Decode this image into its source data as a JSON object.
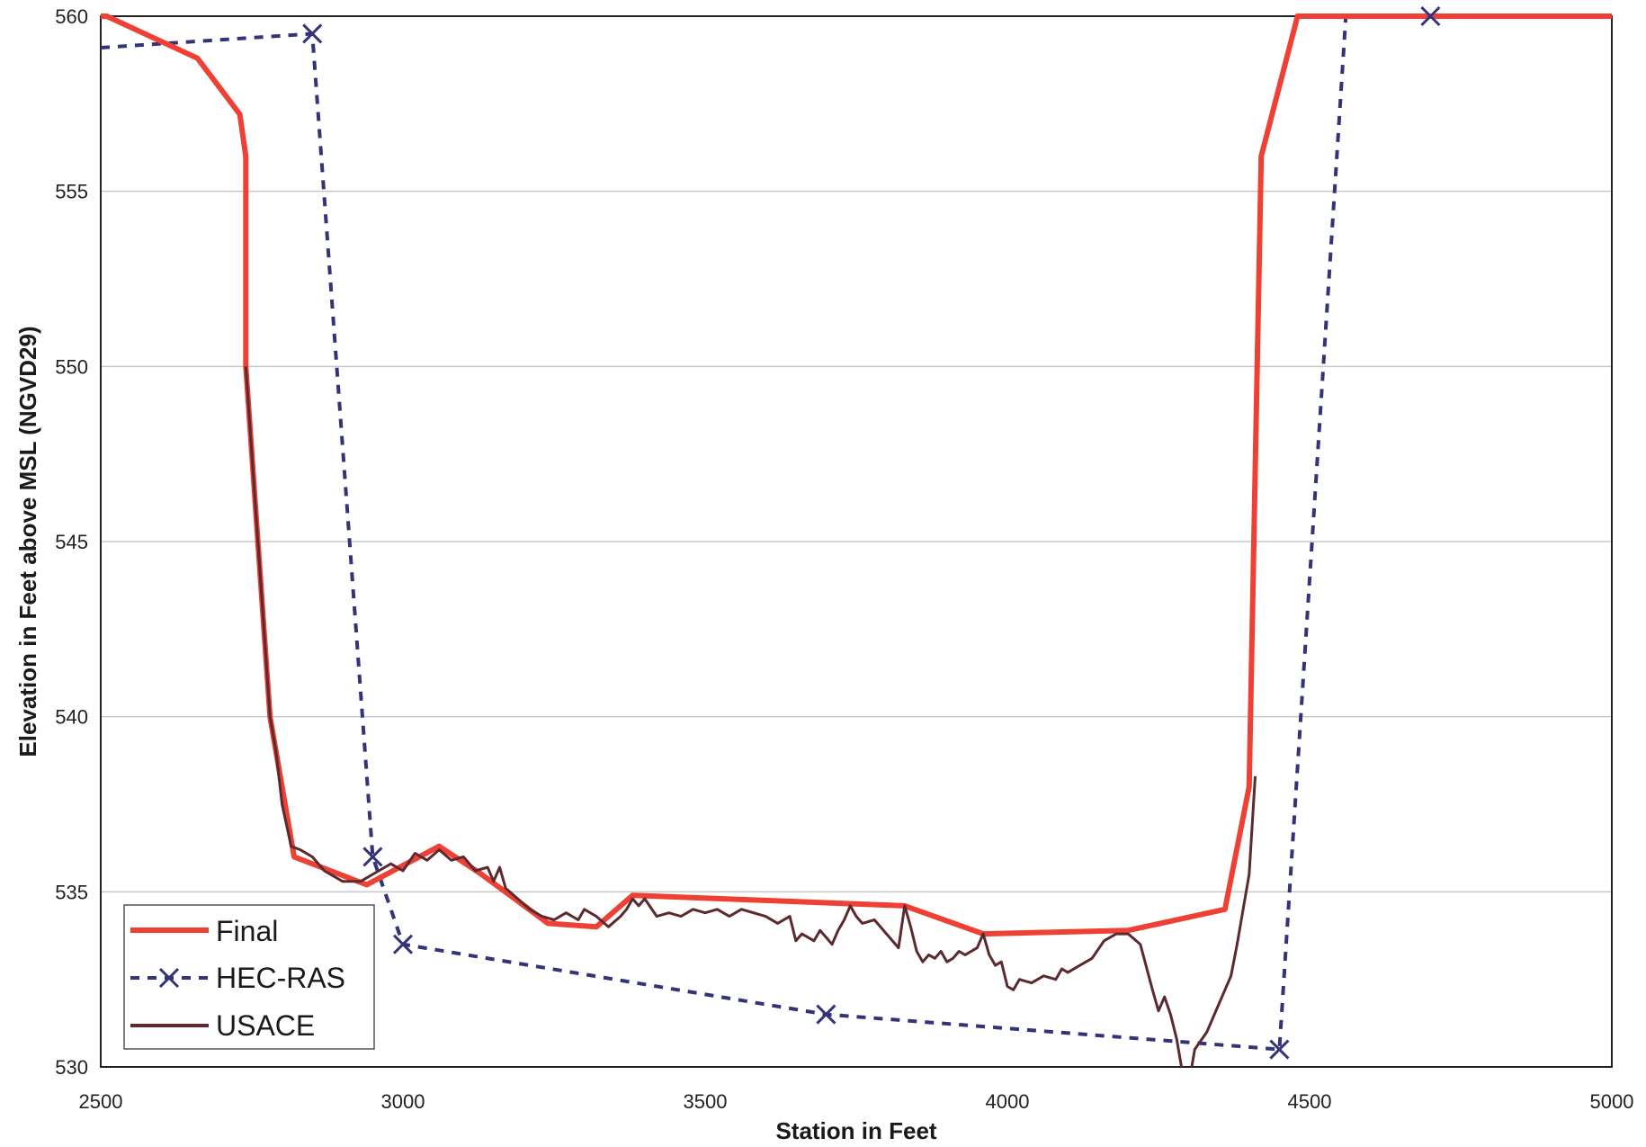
{
  "chart_data": {
    "type": "line",
    "title": "",
    "xlabel": "Station in Feet",
    "ylabel": "Elevation in Feet above MSL (NGVD29)",
    "xlim": [
      2500,
      5000
    ],
    "ylim": [
      530,
      560
    ],
    "x_ticks": [
      "2500",
      "3000",
      "3500",
      "4000",
      "4500",
      "5000"
    ],
    "y_ticks": [
      "530",
      "535",
      "540",
      "545",
      "550",
      "555",
      "560"
    ],
    "grid": "horizontal",
    "legend_position": "bottom-left",
    "series": [
      {
        "name": "Final",
        "color": "#ee4035",
        "style": "solid-thick",
        "points": [
          [
            2500,
            560
          ],
          [
            2510,
            560
          ],
          [
            2660,
            558.8
          ],
          [
            2730,
            557.2
          ],
          [
            2740,
            556
          ],
          [
            2740,
            550
          ],
          [
            2760,
            545
          ],
          [
            2780,
            540
          ],
          [
            2800,
            538
          ],
          [
            2820,
            536
          ],
          [
            2940,
            535.2
          ],
          [
            3060,
            536.3
          ],
          [
            3130,
            535.5
          ],
          [
            3240,
            534.1
          ],
          [
            3320,
            534
          ],
          [
            3380,
            534.9
          ],
          [
            3830,
            534.6
          ],
          [
            3960,
            533.8
          ],
          [
            4200,
            533.9
          ],
          [
            4360,
            534.5
          ],
          [
            4400,
            538
          ],
          [
            4420,
            556
          ],
          [
            4480,
            560
          ],
          [
            5000,
            560
          ]
        ]
      },
      {
        "name": "HEC-RAS",
        "color": "#33337a",
        "style": "dashed-x",
        "points": [
          [
            2500,
            559.1
          ],
          [
            2850,
            559.5
          ],
          [
            2950,
            536
          ],
          [
            3000,
            533.5
          ],
          [
            3700,
            531.5
          ],
          [
            4450,
            530.5
          ],
          [
            4560,
            560
          ],
          [
            4700,
            560
          ],
          [
            5000,
            560
          ]
        ],
        "marked_points": [
          [
            2850,
            559.5
          ],
          [
            2950,
            536
          ],
          [
            3000,
            533.5
          ],
          [
            3700,
            531.5
          ],
          [
            4450,
            530.5
          ],
          [
            4700,
            560
          ]
        ]
      },
      {
        "name": "USACE",
        "color": "#5c2a2e",
        "style": "solid-jagged",
        "points": [
          [
            2740,
            550
          ],
          [
            2760,
            545
          ],
          [
            2780,
            540
          ],
          [
            2790,
            539
          ],
          [
            2800,
            537.5
          ],
          [
            2815,
            536.3
          ],
          [
            2830,
            536.2
          ],
          [
            2850,
            536
          ],
          [
            2870,
            535.6
          ],
          [
            2900,
            535.3
          ],
          [
            2930,
            535.3
          ],
          [
            2960,
            535.6
          ],
          [
            2980,
            535.8
          ],
          [
            3000,
            535.6
          ],
          [
            3020,
            536.1
          ],
          [
            3040,
            535.9
          ],
          [
            3060,
            536.2
          ],
          [
            3080,
            535.9
          ],
          [
            3100,
            536.0
          ],
          [
            3120,
            535.6
          ],
          [
            3140,
            535.7
          ],
          [
            3150,
            535.3
          ],
          [
            3160,
            535.7
          ],
          [
            3170,
            535.1
          ],
          [
            3190,
            534.8
          ],
          [
            3210,
            534.5
          ],
          [
            3230,
            534.3
          ],
          [
            3250,
            534.2
          ],
          [
            3270,
            534.4
          ],
          [
            3290,
            534.2
          ],
          [
            3300,
            534.5
          ],
          [
            3320,
            534.3
          ],
          [
            3340,
            534.0
          ],
          [
            3360,
            534.3
          ],
          [
            3370,
            534.5
          ],
          [
            3380,
            534.8
          ],
          [
            3390,
            534.6
          ],
          [
            3400,
            534.8
          ],
          [
            3420,
            534.3
          ],
          [
            3440,
            534.4
          ],
          [
            3460,
            534.3
          ],
          [
            3480,
            534.5
          ],
          [
            3500,
            534.4
          ],
          [
            3520,
            534.5
          ],
          [
            3540,
            534.3
          ],
          [
            3560,
            534.5
          ],
          [
            3580,
            534.4
          ],
          [
            3600,
            534.3
          ],
          [
            3620,
            534.1
          ],
          [
            3640,
            534.3
          ],
          [
            3650,
            533.6
          ],
          [
            3660,
            533.8
          ],
          [
            3680,
            533.6
          ],
          [
            3690,
            533.9
          ],
          [
            3700,
            533.7
          ],
          [
            3710,
            533.5
          ],
          [
            3720,
            533.9
          ],
          [
            3730,
            534.2
          ],
          [
            3740,
            534.6
          ],
          [
            3750,
            534.3
          ],
          [
            3760,
            534.1
          ],
          [
            3780,
            534.2
          ],
          [
            3800,
            533.8
          ],
          [
            3820,
            533.4
          ],
          [
            3830,
            534.6
          ],
          [
            3840,
            534.0
          ],
          [
            3850,
            533.3
          ],
          [
            3860,
            533.0
          ],
          [
            3870,
            533.2
          ],
          [
            3880,
            533.1
          ],
          [
            3890,
            533.3
          ],
          [
            3900,
            533.0
          ],
          [
            3910,
            533.1
          ],
          [
            3920,
            533.3
          ],
          [
            3930,
            533.2
          ],
          [
            3950,
            533.4
          ],
          [
            3960,
            533.8
          ],
          [
            3970,
            533.2
          ],
          [
            3980,
            532.9
          ],
          [
            3990,
            533.0
          ],
          [
            4000,
            532.3
          ],
          [
            4010,
            532.2
          ],
          [
            4020,
            532.5
          ],
          [
            4040,
            532.4
          ],
          [
            4060,
            532.6
          ],
          [
            4080,
            532.5
          ],
          [
            4090,
            532.8
          ],
          [
            4100,
            532.7
          ],
          [
            4120,
            532.9
          ],
          [
            4140,
            533.1
          ],
          [
            4160,
            533.6
          ],
          [
            4180,
            533.8
          ],
          [
            4200,
            533.8
          ],
          [
            4220,
            533.5
          ],
          [
            4240,
            532.2
          ],
          [
            4250,
            531.6
          ],
          [
            4260,
            532.0
          ],
          [
            4270,
            531.5
          ],
          [
            4280,
            530.8
          ],
          [
            4290,
            529.8
          ],
          [
            4300,
            529.5
          ],
          [
            4310,
            530.5
          ],
          [
            4330,
            531.0
          ],
          [
            4350,
            531.8
          ],
          [
            4370,
            532.6
          ],
          [
            4380,
            533.5
          ],
          [
            4390,
            534.5
          ],
          [
            4400,
            535.5
          ],
          [
            4410,
            538.3
          ]
        ]
      }
    ]
  }
}
